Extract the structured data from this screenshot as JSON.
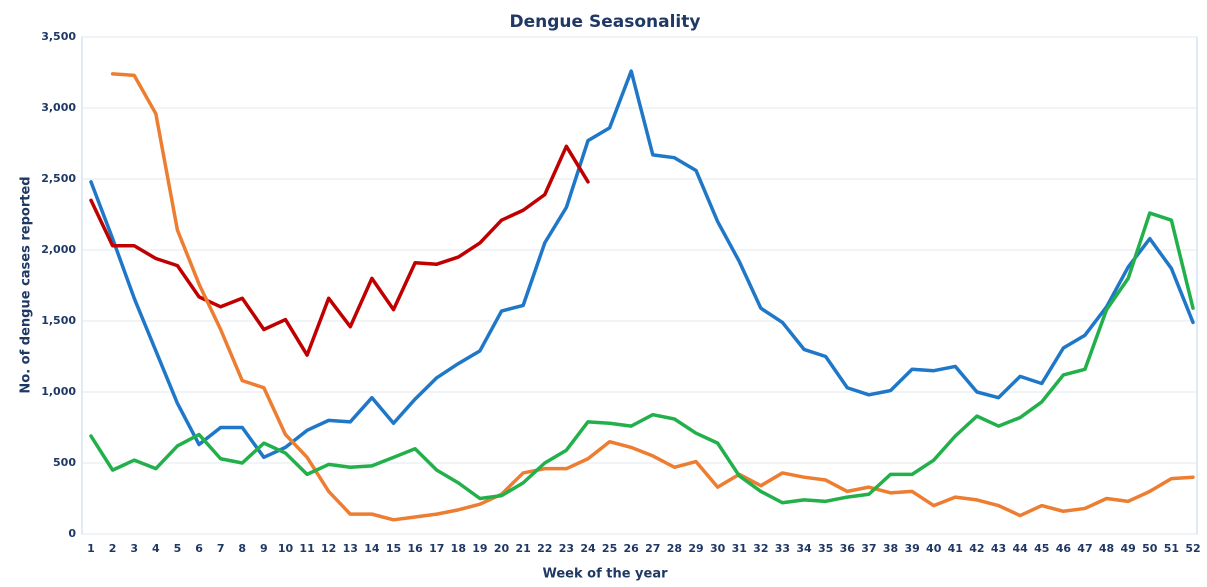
{
  "chart_data": {
    "type": "line",
    "title": "Dengue Seasonality",
    "x_label": "Week of the year",
    "y_label": "No. of dengue cases reported",
    "categories": [
      "1",
      "2",
      "3",
      "4",
      "5",
      "6",
      "7",
      "8",
      "9",
      "10",
      "11",
      "12",
      "13",
      "14",
      "15",
      "16",
      "17",
      "18",
      "19",
      "20",
      "21",
      "22",
      "23",
      "24",
      "25",
      "26",
      "27",
      "28",
      "29",
      "30",
      "31",
      "32",
      "33",
      "34",
      "35",
      "36",
      "37",
      "38",
      "39",
      "40",
      "41",
      "42",
      "43",
      "44",
      "45",
      "46",
      "47",
      "48",
      "49",
      "50",
      "51",
      "52"
    ],
    "ylim": [
      0,
      3500
    ],
    "yticks": [
      0,
      500,
      {
        "value": 1000,
        "label": "1,000"
      },
      {
        "value": 1500,
        "label": "1,500"
      },
      {
        "value": 2000,
        "label": "2,000"
      },
      {
        "value": 2500,
        "label": "2,500"
      },
      {
        "value": 3000,
        "label": "3,000"
      },
      {
        "value": 3500,
        "label": "3,500"
      }
    ],
    "grid": true,
    "series": [
      {
        "color": "#1f77c8",
        "values": [
          2480,
          2080,
          1660,
          1290,
          920,
          630,
          750,
          750,
          540,
          610,
          730,
          800,
          790,
          960,
          780,
          950,
          1100,
          1200,
          1290,
          1570,
          1610,
          2050,
          2300,
          2770,
          2860,
          3260,
          2670,
          2650,
          2560,
          2200,
          1920,
          1590,
          1490,
          1300,
          1250,
          1030,
          980,
          1010,
          1160,
          1150,
          1180,
          1000,
          960,
          1110,
          1060,
          1310,
          1400,
          1600,
          1880,
          2080,
          1870,
          1490
        ]
      },
      {
        "color": "#c00000",
        "values": [
          2350,
          2030,
          2030,
          1940,
          1890,
          1670,
          1600,
          1660,
          1440,
          1510,
          1260,
          1660,
          1460,
          1800,
          1580,
          1910,
          1900,
          1950,
          2050,
          2210,
          2280,
          2390,
          2730,
          2480,
          null,
          null,
          null,
          null,
          null,
          null,
          null,
          null,
          null,
          null,
          null,
          null,
          null,
          null,
          null,
          null,
          null,
          null,
          null,
          null,
          null,
          null,
          null,
          null,
          null,
          null,
          null,
          null
        ]
      },
      {
        "color": "#ed7d31",
        "values": [
          null,
          3240,
          3230,
          2960,
          2140,
          1760,
          1440,
          1080,
          1030,
          700,
          540,
          300,
          140,
          140,
          100,
          120,
          140,
          170,
          210,
          280,
          430,
          460,
          460,
          530,
          650,
          610,
          550,
          470,
          510,
          330,
          420,
          340,
          430,
          400,
          380,
          300,
          330,
          290,
          300,
          200,
          260,
          240,
          200,
          130,
          200,
          160,
          180,
          250,
          230,
          300,
          390,
          400
        ]
      },
      {
        "color": "#22b04b",
        "values": [
          690,
          450,
          520,
          460,
          620,
          700,
          530,
          500,
          640,
          570,
          420,
          490,
          470,
          480,
          540,
          600,
          450,
          360,
          250,
          270,
          360,
          500,
          590,
          790,
          780,
          760,
          840,
          810,
          710,
          640,
          410,
          300,
          220,
          240,
          230,
          260,
          280,
          420,
          420,
          520,
          690,
          830,
          760,
          820,
          930,
          1120,
          1160,
          1580,
          1800,
          2260,
          2210,
          1590
        ]
      }
    ]
  }
}
